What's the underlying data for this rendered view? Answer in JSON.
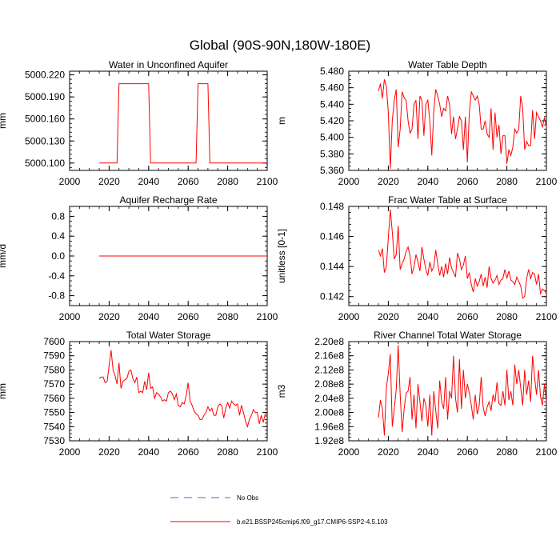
{
  "page": {
    "title": "Global (90S-90N,180W-180E)"
  },
  "legend": {
    "obs_label": "No Obs",
    "obs_color": "#6a5acd",
    "model_label": "b.e21.BSSP245cmip6.f09_g17.CMIP6-SSP2-4.5.103",
    "model_color": "#ff0000"
  },
  "chart_data": [
    {
      "id": "p1",
      "type": "line",
      "title": "Water in Unconfined Aquifer",
      "ylabel": "mm",
      "xlim": [
        2000,
        2100
      ],
      "xticks": [
        2000,
        2020,
        2040,
        2060,
        2080,
        2100
      ],
      "ylim": [
        5000.09,
        5000.225
      ],
      "yticks": [
        5000.1,
        5000.13,
        5000.16,
        5000.19,
        5000.22
      ],
      "ytick_labels": [
        "5000.100",
        "5000.130",
        "5000.160",
        "5000.190",
        "5000.220"
      ],
      "yminor": 0.006,
      "series": [
        {
          "name": "b.e21.BSSP245cmip6.f09_g17.CMIP6-SSP2-4.5.103",
          "x": [
            2015,
            2024,
            2025,
            2040,
            2041,
            2064,
            2065,
            2070,
            2071,
            2100
          ],
          "y": [
            5000.1,
            5000.1,
            5000.208,
            5000.208,
            5000.1,
            5000.1,
            5000.208,
            5000.208,
            5000.1,
            5000.1
          ]
        }
      ]
    },
    {
      "id": "p2",
      "type": "line",
      "title": "Water Table Depth",
      "ylabel": "m",
      "xlim": [
        2000,
        2100
      ],
      "xticks": [
        2000,
        2020,
        2040,
        2060,
        2080,
        2100
      ],
      "ylim": [
        5.36,
        5.48
      ],
      "yticks": [
        5.36,
        5.38,
        5.4,
        5.42,
        5.44,
        5.46,
        5.48
      ],
      "ytick_labels": [
        "5.360",
        "5.380",
        "5.400",
        "5.420",
        "5.440",
        "5.460",
        "5.480"
      ],
      "yminor": 0.005,
      "series": [
        {
          "name": "b.e21.BSSP245cmip6.f09_g17.CMIP6-SSP2-4.5.103",
          "x": [
            2015,
            2016,
            2017,
            2018,
            2019,
            2020,
            2021,
            2022,
            2023,
            2024,
            2025,
            2026,
            2027,
            2028,
            2029,
            2030,
            2031,
            2032,
            2033,
            2034,
            2035,
            2036,
            2037,
            2038,
            2039,
            2040,
            2041,
            2042,
            2043,
            2044,
            2045,
            2046,
            2047,
            2048,
            2049,
            2050,
            2051,
            2052,
            2053,
            2054,
            2055,
            2056,
            2057,
            2058,
            2059,
            2060,
            2061,
            2062,
            2063,
            2064,
            2065,
            2066,
            2067,
            2068,
            2069,
            2070,
            2071,
            2072,
            2073,
            2074,
            2075,
            2076,
            2077,
            2078,
            2079,
            2080,
            2081,
            2082,
            2083,
            2084,
            2085,
            2086,
            2087,
            2088,
            2089,
            2090,
            2091,
            2092,
            2093,
            2094,
            2095,
            2096,
            2097,
            2098,
            2099,
            2100
          ],
          "y": [
            5.456,
            5.465,
            5.447,
            5.47,
            5.462,
            5.43,
            5.362,
            5.42,
            5.445,
            5.458,
            5.388,
            5.41,
            5.455,
            5.448,
            5.445,
            5.42,
            5.405,
            5.41,
            5.44,
            5.445,
            5.398,
            5.45,
            5.445,
            5.402,
            5.44,
            5.445,
            5.42,
            5.378,
            5.432,
            5.458,
            5.45,
            5.44,
            5.425,
            5.435,
            5.432,
            5.45,
            5.44,
            5.404,
            5.425,
            5.398,
            5.41,
            5.425,
            5.42,
            5.385,
            5.425,
            5.37,
            5.43,
            5.455,
            5.45,
            5.445,
            5.45,
            5.44,
            5.41,
            5.41,
            5.42,
            5.404,
            5.4,
            5.435,
            5.385,
            5.43,
            5.4,
            5.415,
            5.38,
            5.402,
            5.402,
            5.368,
            5.385,
            5.378,
            5.388,
            5.41,
            5.405,
            5.41,
            5.45,
            5.435,
            5.385,
            5.395,
            5.39,
            5.39,
            5.433,
            5.398,
            5.43,
            5.425,
            5.42,
            5.412,
            5.424,
            5.412
          ]
        }
      ]
    },
    {
      "id": "p3",
      "type": "line",
      "title": "Aquifer Recharge Rate",
      "ylabel": "mm/d",
      "xlim": [
        2000,
        2100
      ],
      "xticks": [
        2000,
        2020,
        2040,
        2060,
        2080,
        2100
      ],
      "ylim": [
        -1.0,
        1.0
      ],
      "yticks": [
        -0.8,
        -0.4,
        0.0,
        0.4,
        0.8
      ],
      "ytick_labels": [
        "-0.8",
        "-0.4",
        "0.0",
        "0.4",
        "0.8"
      ],
      "yminor": 0.1,
      "series": [
        {
          "name": "b.e21.BSSP245cmip6.f09_g17.CMIP6-SSP2-4.5.103",
          "x": [
            2015,
            2100
          ],
          "y": [
            0.0,
            0.0
          ]
        }
      ]
    },
    {
      "id": "p4",
      "type": "line",
      "title": "Frac Water Table at Surface",
      "ylabel": "unitless [0-1]",
      "xlim": [
        2000,
        2100
      ],
      "xticks": [
        2000,
        2020,
        2040,
        2060,
        2080,
        2100
      ],
      "ylim": [
        0.1414,
        0.148
      ],
      "yticks": [
        0.142,
        0.144,
        0.146,
        0.148
      ],
      "ytick_labels": [
        "0.142",
        "0.144",
        "0.146",
        "0.148"
      ],
      "yminor": 0.0004,
      "series": [
        {
          "name": "b.e21.BSSP245cmip6.f09_g17.CMIP6-SSP2-4.5.103",
          "x": [
            2015,
            2016,
            2017,
            2018,
            2019,
            2020,
            2021,
            2022,
            2023,
            2024,
            2025,
            2026,
            2027,
            2028,
            2029,
            2030,
            2031,
            2032,
            2033,
            2034,
            2035,
            2036,
            2037,
            2038,
            2039,
            2040,
            2041,
            2042,
            2043,
            2044,
            2045,
            2046,
            2047,
            2048,
            2049,
            2050,
            2051,
            2052,
            2053,
            2054,
            2055,
            2056,
            2057,
            2058,
            2059,
            2060,
            2061,
            2062,
            2063,
            2064,
            2065,
            2066,
            2067,
            2068,
            2069,
            2070,
            2071,
            2072,
            2073,
            2074,
            2075,
            2076,
            2077,
            2078,
            2079,
            2080,
            2081,
            2082,
            2083,
            2084,
            2085,
            2086,
            2087,
            2088,
            2089,
            2090,
            2091,
            2092,
            2093,
            2094,
            2095,
            2096,
            2097,
            2098,
            2099,
            2100
          ],
          "y": [
            0.1451,
            0.1447,
            0.1452,
            0.1436,
            0.144,
            0.1459,
            0.1478,
            0.1463,
            0.1445,
            0.1448,
            0.1467,
            0.1438,
            0.1442,
            0.1445,
            0.145,
            0.1453,
            0.1447,
            0.1435,
            0.144,
            0.1448,
            0.1443,
            0.1437,
            0.1453,
            0.1445,
            0.1438,
            0.1434,
            0.1443,
            0.1437,
            0.144,
            0.1451,
            0.1442,
            0.1434,
            0.144,
            0.1433,
            0.1442,
            0.1435,
            0.1446,
            0.1439,
            0.1436,
            0.1433,
            0.1449,
            0.1445,
            0.1438,
            0.1441,
            0.1447,
            0.1432,
            0.1436,
            0.1428,
            0.1423,
            0.1432,
            0.1427,
            0.143,
            0.1435,
            0.1427,
            0.1433,
            0.1426,
            0.144,
            0.1432,
            0.1429,
            0.1431,
            0.1434,
            0.1428,
            0.1431,
            0.1432,
            0.1438,
            0.1432,
            0.1437,
            0.1431,
            0.143,
            0.1428,
            0.1433,
            0.143,
            0.1427,
            0.1419,
            0.142,
            0.1432,
            0.1438,
            0.1432,
            0.1436,
            0.1435,
            0.1428,
            0.1435,
            0.1422,
            0.1425,
            0.1424,
            0.1422
          ]
        }
      ]
    },
    {
      "id": "p5",
      "type": "line",
      "title": "Total Water Storage",
      "ylabel": "mm",
      "xlim": [
        2000,
        2100
      ],
      "xticks": [
        2000,
        2020,
        2040,
        2060,
        2080,
        2100
      ],
      "ylim": [
        7530,
        7600
      ],
      "yticks": [
        7530,
        7540,
        7550,
        7560,
        7570,
        7580,
        7590,
        7600
      ],
      "ytick_labels": [
        "7530",
        "7540",
        "7550",
        "7560",
        "7570",
        "7580",
        "7590",
        "7600"
      ],
      "yminor": 2.5,
      "series": [
        {
          "name": "b.e21.BSSP245cmip6.f09_g17.CMIP6-SSP2-4.5.103",
          "x": [
            2015,
            2016,
            2017,
            2018,
            2019,
            2020,
            2021,
            2022,
            2023,
            2024,
            2025,
            2026,
            2027,
            2028,
            2029,
            2030,
            2031,
            2032,
            2033,
            2034,
            2035,
            2036,
            2037,
            2038,
            2039,
            2040,
            2041,
            2042,
            2043,
            2044,
            2045,
            2046,
            2047,
            2048,
            2049,
            2050,
            2051,
            2052,
            2053,
            2054,
            2055,
            2056,
            2057,
            2058,
            2059,
            2060,
            2061,
            2062,
            2063,
            2064,
            2065,
            2066,
            2067,
            2068,
            2069,
            2070,
            2071,
            2072,
            2073,
            2074,
            2075,
            2076,
            2077,
            2078,
            2079,
            2080,
            2081,
            2082,
            2083,
            2084,
            2085,
            2086,
            2087,
            2088,
            2089,
            2090,
            2091,
            2092,
            2093,
            2094,
            2095,
            2096,
            2097,
            2098,
            2099,
            2100
          ],
          "y": [
            7574,
            7575,
            7575,
            7571,
            7572,
            7583,
            7594,
            7580,
            7576,
            7570,
            7585,
            7567,
            7572,
            7573,
            7574,
            7579,
            7580,
            7574,
            7571,
            7575,
            7564,
            7565,
            7564,
            7572,
            7566,
            7578,
            7567,
            7568,
            7560,
            7564,
            7563,
            7561,
            7558,
            7559,
            7558,
            7564,
            7565,
            7563,
            7559,
            7563,
            7555,
            7554,
            7557,
            7556,
            7562,
            7571,
            7558,
            7555,
            7551,
            7549,
            7548,
            7545,
            7545,
            7548,
            7550,
            7554,
            7551,
            7553,
            7548,
            7548,
            7554,
            7556,
            7555,
            7546,
            7553,
            7557,
            7553,
            7558,
            7556,
            7555,
            7556,
            7548,
            7555,
            7550,
            7544,
            7540,
            7545,
            7548,
            7552,
            7550,
            7550,
            7542,
            7548,
            7543,
            7549,
            7549
          ]
        }
      ]
    },
    {
      "id": "p6",
      "type": "line",
      "title": "River Channel Total Water Storage",
      "ylabel": "m3",
      "xlim": [
        2000,
        2100
      ],
      "xticks": [
        2000,
        2020,
        2040,
        2060,
        2080,
        2100
      ],
      "ylim": [
        192000000.0,
        220000000.0
      ],
      "yticks": [
        192000000.0,
        196000000.0,
        200000000.0,
        204000000.0,
        208000000.0,
        212000000.0,
        216000000.0,
        220000000.0
      ],
      "ytick_labels": [
        "1.92e8",
        "1.96e8",
        "2.00e8",
        "2.04e8",
        "2.08e8",
        "2.12e8",
        "2.16e8",
        "2.20e8"
      ],
      "yminor": 1000000.0,
      "series": [
        {
          "name": "b.e21.BSSP245cmip6.f09_g17.CMIP6-SSP2-4.5.103",
          "x": [
            2015,
            2016,
            2017,
            2018,
            2019,
            2020,
            2021,
            2022,
            2023,
            2024,
            2025,
            2026,
            2027,
            2028,
            2029,
            2030,
            2031,
            2032,
            2033,
            2034,
            2035,
            2036,
            2037,
            2038,
            2039,
            2040,
            2041,
            2042,
            2043,
            2044,
            2045,
            2046,
            2047,
            2048,
            2049,
            2050,
            2051,
            2052,
            2053,
            2054,
            2055,
            2056,
            2057,
            2058,
            2059,
            2060,
            2061,
            2062,
            2063,
            2064,
            2065,
            2066,
            2067,
            2068,
            2069,
            2070,
            2071,
            2072,
            2073,
            2074,
            2075,
            2076,
            2077,
            2078,
            2079,
            2080,
            2081,
            2082,
            2083,
            2084,
            2085,
            2086,
            2087,
            2088,
            2089,
            2090,
            2091,
            2092,
            2093,
            2094,
            2095,
            2096,
            2097,
            2098,
            2099,
            2100
          ],
          "y": [
            198500000.0,
            203500000.0,
            201000000.0,
            193500000.0,
            207000000.0,
            211000000.0,
            216500000.0,
            196000000.0,
            201000000.0,
            206500000.0,
            219000000.0,
            205000000.0,
            194500000.0,
            201000000.0,
            205500000.0,
            206000000.0,
            210000000.0,
            198000000.0,
            205000000.0,
            195500000.0,
            208000000.0,
            203000000.0,
            197500000.0,
            204000000.0,
            202000000.0,
            196000000.0,
            205000000.0,
            193500000.0,
            206000000.0,
            200500000.0,
            195500000.0,
            209000000.0,
            203000000.0,
            201000000.0,
            210000000.0,
            198000000.0,
            206000000.0,
            204000000.0,
            216000000.0,
            204000000.0,
            200000000.0,
            215000000.0,
            201000000.0,
            212000000.0,
            204000000.0,
            208000000.0,
            205500000.0,
            202000000.0,
            198000000.0,
            205000000.0,
            199500000.0,
            202000000.0,
            210000000.0,
            201500000.0,
            199000000.0,
            201500000.0,
            203000000.0,
            200500000.0,
            205000000.0,
            203000000.0,
            208500000.0,
            202500000.0,
            202000000.0,
            206000000.0,
            202000000.0,
            212000000.0,
            203500000.0,
            206000000.0,
            202000000.0,
            213500000.0,
            208000000.0,
            212000000.0,
            207000000.0,
            202000000.0,
            212000000.0,
            205000000.0,
            209000000.0,
            203000000.0,
            216000000.0,
            210000000.0,
            205000000.0,
            212000000.0,
            204500000.0,
            202000000.0,
            208000000.0,
            203000000.0
          ]
        }
      ]
    }
  ]
}
